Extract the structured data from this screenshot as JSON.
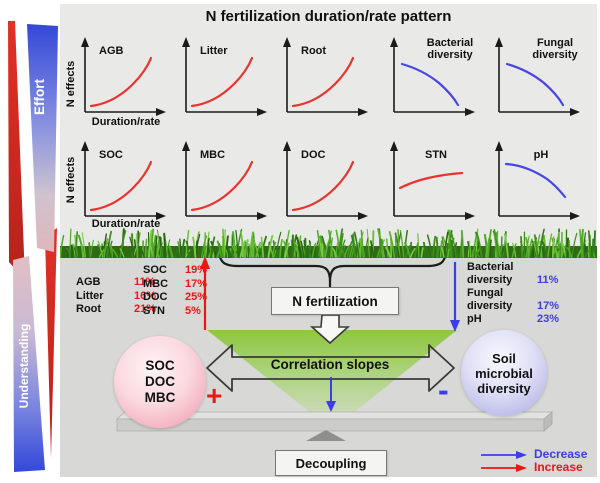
{
  "title": "N fertilization duration/rate pattern",
  "sidebar": {
    "top": "Effort",
    "bottom": "Understanding"
  },
  "axis": {
    "y": "N effects",
    "x": "Duration/rate"
  },
  "colors": {
    "red": "#ee1515",
    "blue": "#3c3ce8",
    "curve_red": "#e8332e",
    "curve_blue": "#4646e6",
    "green": "#8dc63f"
  },
  "plots": [
    {
      "label": "AGB",
      "trend": "up",
      "direction": "increase"
    },
    {
      "label": "Litter",
      "trend": "up",
      "direction": "increase"
    },
    {
      "label": "Root",
      "trend": "up",
      "direction": "increase"
    },
    {
      "label": "Bacterial diversity",
      "trend": "down",
      "direction": "decrease"
    },
    {
      "label": "Fungal diversity",
      "trend": "down",
      "direction": "decrease"
    },
    {
      "label": "SOC",
      "trend": "up",
      "direction": "increase"
    },
    {
      "label": "MBC",
      "trend": "up",
      "direction": "increase"
    },
    {
      "label": "DOC",
      "trend": "up",
      "direction": "increase"
    },
    {
      "label": "STN",
      "trend": "flat_up",
      "direction": "increase"
    },
    {
      "label": "pH",
      "trend": "down_soft",
      "direction": "decrease"
    }
  ],
  "effect_sizes": {
    "plant": [
      {
        "label": "AGB",
        "value": "11%"
      },
      {
        "label": "Litter",
        "value": "16%"
      },
      {
        "label": "Root",
        "value": "21%"
      }
    ],
    "soil": [
      {
        "label": "SOC",
        "value": "19%"
      },
      {
        "label": "MBC",
        "value": "17%"
      },
      {
        "label": "DOC",
        "value": "25%"
      },
      {
        "label": "STN",
        "value": "5%"
      }
    ],
    "microbial": [
      {
        "label": "Bacterial diversity",
        "value": "11%"
      },
      {
        "label": "Fungal diversity",
        "value": "17%"
      },
      {
        "label": "pH",
        "value": "23%"
      }
    ]
  },
  "flow": {
    "source": "N fertilization",
    "correlation": "Correlation slopes",
    "decoupling": "Decoupling"
  },
  "pools": {
    "left_lines": [
      "SOC",
      "DOC",
      "MBC"
    ],
    "left_sign": "+",
    "right_lines": [
      "Soil",
      "microbial",
      "diversity"
    ],
    "right_sign": "-"
  },
  "legend": {
    "decrease": "Decrease",
    "increase": "Increase"
  }
}
